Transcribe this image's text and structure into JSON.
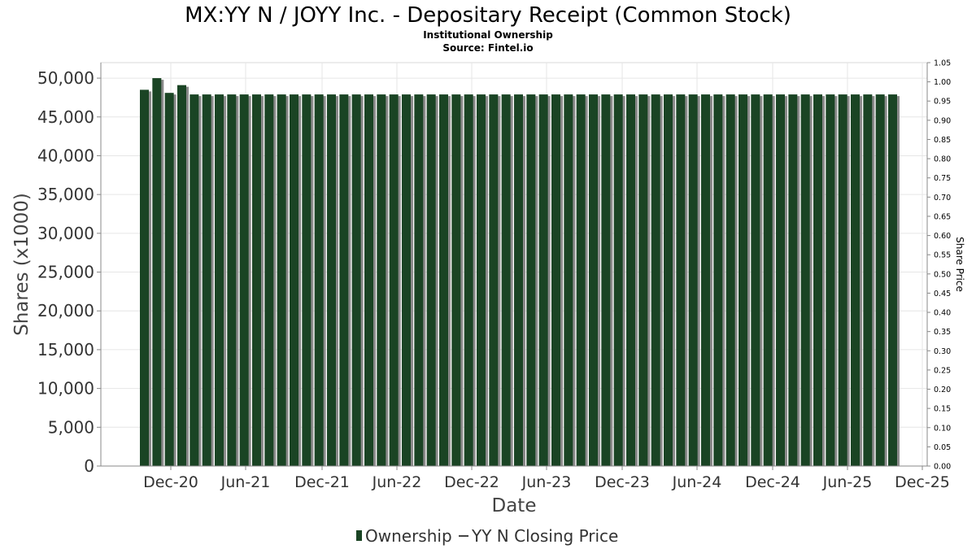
{
  "chart_data": {
    "type": "bar",
    "title": "MX:YY N / JOYY Inc. - Depositary Receipt (Common Stock)",
    "subtitle": [
      "Institutional Ownership",
      "Source: Fintel.io"
    ],
    "xlabel": "Date",
    "ylabel": "Shares (x1000)",
    "y2label": "Share Price",
    "ylim": [
      0,
      52000
    ],
    "y2lim": [
      0,
      1.05
    ],
    "yticks": [
      "0",
      "5,000",
      "10,000",
      "15,000",
      "20,000",
      "25,000",
      "30,000",
      "35,000",
      "40,000",
      "45,000",
      "50,000"
    ],
    "y2ticks": [
      "0.00",
      "0.05",
      "0.10",
      "0.15",
      "0.20",
      "0.25",
      "0.30",
      "0.35",
      "0.40",
      "0.45",
      "0.50",
      "0.55",
      "0.60",
      "0.65",
      "0.70",
      "0.75",
      "0.80",
      "0.85",
      "0.90",
      "0.95",
      "1.00",
      "1.05"
    ],
    "xticks": [
      "Dec-20",
      "Jun-21",
      "Dec-21",
      "Jun-22",
      "Dec-22",
      "Jun-23",
      "Dec-23",
      "Jun-24",
      "Dec-24",
      "Jun-25",
      "Dec-25"
    ],
    "grid": true,
    "legend_position": "bottom",
    "legend": [
      {
        "name": "Ownership",
        "type": "bar",
        "color": "#1a4424"
      },
      {
        "name": "YY N Closing Price",
        "type": "line",
        "color": "#444444"
      }
    ],
    "series": [
      {
        "name": "Ownership",
        "values": [
          48500,
          50000,
          48100,
          49100,
          47900,
          47900,
          47900,
          47900,
          47900,
          47900,
          47900,
          47900,
          47900,
          47900,
          47900,
          47900,
          47900,
          47900,
          47900,
          47900,
          47900,
          47900,
          47900,
          47900,
          47900,
          47900,
          47900,
          47900,
          47900,
          47900,
          47900,
          47900,
          47900,
          47900,
          47900,
          47900,
          47900,
          47900,
          47900,
          47900,
          47900,
          47900,
          47900,
          47900,
          47900,
          47900,
          47900,
          47900,
          47900,
          47900,
          47900,
          47900,
          47900,
          47900,
          47900,
          47900,
          47900,
          47900,
          47900,
          47900,
          47900
        ]
      }
    ],
    "colors": {
      "bar": "#1a4424",
      "bar_shadow": "#8a8a8a",
      "grid": "#e6e6e6",
      "axis": "#888888"
    }
  }
}
